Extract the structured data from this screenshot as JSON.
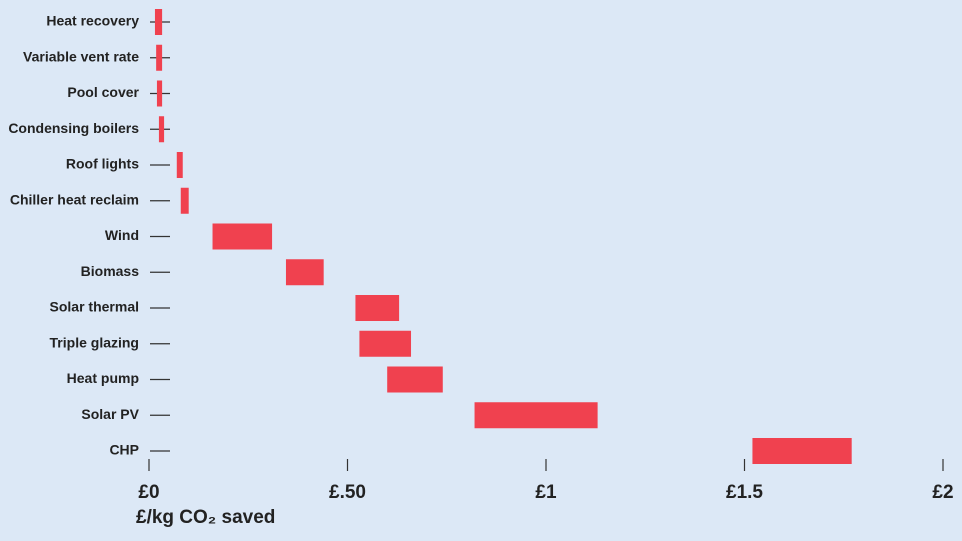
{
  "chart_data": {
    "type": "range-bar",
    "categories": [
      "Heat recovery",
      "Variable vent rate",
      "Pool cover",
      "Condensing boilers",
      "Roof lights",
      "Chiller heat reclaim",
      "Wind",
      "Biomass",
      "Solar thermal",
      "Triple glazing",
      "Heat pump",
      "Solar PV",
      "CHP"
    ],
    "low": [
      0.015,
      0.018,
      0.02,
      0.025,
      0.07,
      0.08,
      0.16,
      0.345,
      0.52,
      0.53,
      0.6,
      0.82,
      1.52
    ],
    "high": [
      0.033,
      0.033,
      0.033,
      0.038,
      0.085,
      0.1,
      0.31,
      0.44,
      0.63,
      0.66,
      0.74,
      1.13,
      1.77
    ],
    "color": "#f0414f",
    "xlabel": "£/kg CO₂ saved",
    "xlim": [
      0,
      2
    ],
    "xticks": [
      {
        "value": 0,
        "label": "£0"
      },
      {
        "value": 0.5,
        "label": "£.50"
      },
      {
        "value": 1,
        "label": "£1"
      },
      {
        "value": 1.5,
        "label": "£1.5"
      },
      {
        "value": 2,
        "label": "£2"
      }
    ]
  }
}
